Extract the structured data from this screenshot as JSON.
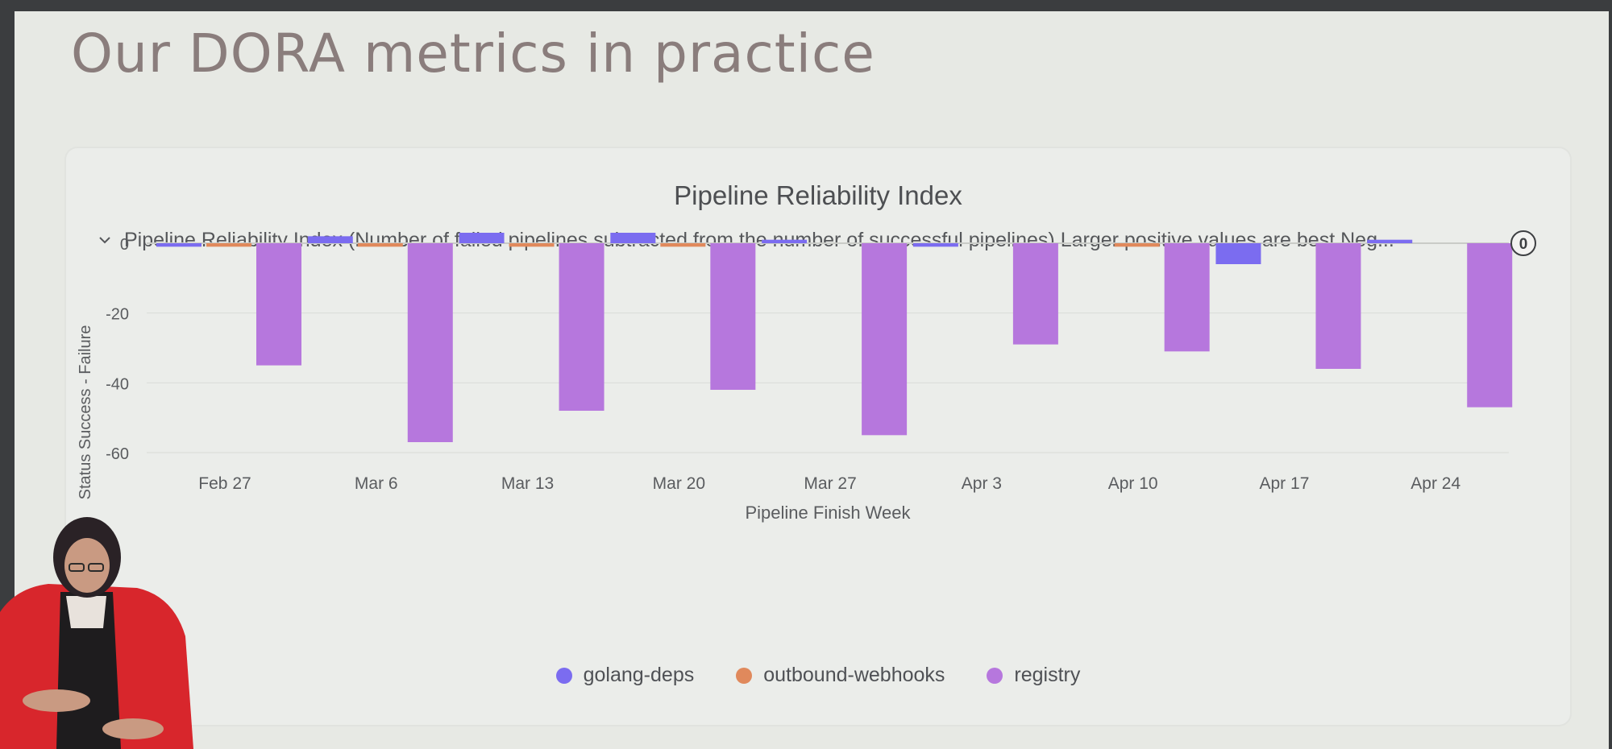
{
  "slide": {
    "title": "Our DORA metrics in practice"
  },
  "panel": {
    "title": "Pipeline Reliability Index",
    "description": "Pipeline Reliability Index (Number of failed pipelines subtracted from the number of successful pipelines) Larger positive values are best Neg..."
  },
  "icons": {
    "expand": "chevron-down-icon"
  },
  "colors": {
    "golang-deps": "#7b6cf0",
    "outbound-webhooks": "#e0895c",
    "registry": "#b677dd",
    "zero_marker": "#3d3f42"
  },
  "chart_data": {
    "type": "bar",
    "title": "Pipeline Reliability Index",
    "xlabel": "Pipeline Finish Week",
    "ylabel": "Status Success - Failure",
    "ylim": [
      -60,
      0
    ],
    "yticks": [
      "0",
      "-20",
      "-40",
      "-60"
    ],
    "categories": [
      "Feb 27",
      "Mar 6",
      "Mar 13",
      "Mar 20",
      "Mar 27",
      "Apr 3",
      "Apr 10",
      "Apr 17",
      "Apr 24"
    ],
    "series": [
      {
        "name": "golang-deps",
        "values": [
          -1,
          2,
          3,
          3,
          1,
          -1,
          0,
          -6,
          1
        ]
      },
      {
        "name": "outbound-webhooks",
        "values": [
          -1,
          -1,
          -1,
          -1,
          0,
          0,
          -1,
          0,
          0
        ]
      },
      {
        "name": "registry",
        "values": [
          -35,
          -57,
          -48,
          -42,
          -55,
          -29,
          -31,
          -36,
          -47
        ]
      }
    ],
    "grid": true,
    "legend": "bottom",
    "zero_line_label": "0"
  }
}
